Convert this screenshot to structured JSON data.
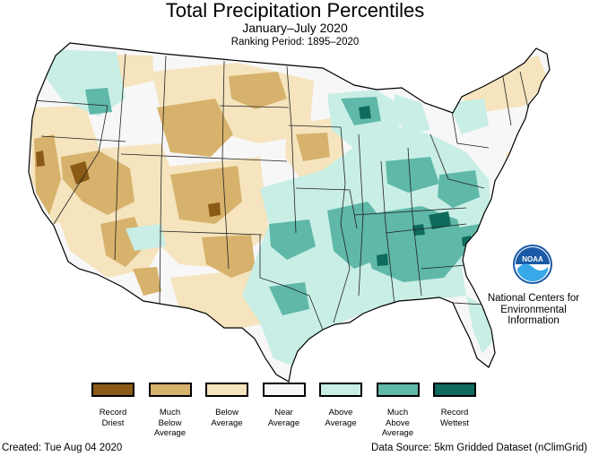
{
  "header": {
    "title": "Total Precipitation Percentiles",
    "subtitle": "January–July 2020",
    "ranking": "Ranking Period: 1895–2020"
  },
  "legend": {
    "items": [
      {
        "label": "Record\nDriest",
        "color": "#8a5a16"
      },
      {
        "label": "Much\nBelow\nAverage",
        "color": "#d7b26c"
      },
      {
        "label": "Below\nAverage",
        "color": "#f5e4bd"
      },
      {
        "label": "Near\nAverage",
        "color": "#f7f7f7"
      },
      {
        "label": "Above\nAverage",
        "color": "#c8eee6"
      },
      {
        "label": "Much\nAbove\nAverage",
        "color": "#5fb8a8"
      },
      {
        "label": "Record\nWettest",
        "color": "#0e6b5e"
      }
    ]
  },
  "logo": {
    "icon": "noaa-logo-icon",
    "name": "National Centers for\nEnvironmental\nInformation"
  },
  "footer": {
    "created": "Created: Tue Aug 04 2020",
    "source": "Data Source: 5km Gridded Dataset (nClimGrid)"
  }
}
